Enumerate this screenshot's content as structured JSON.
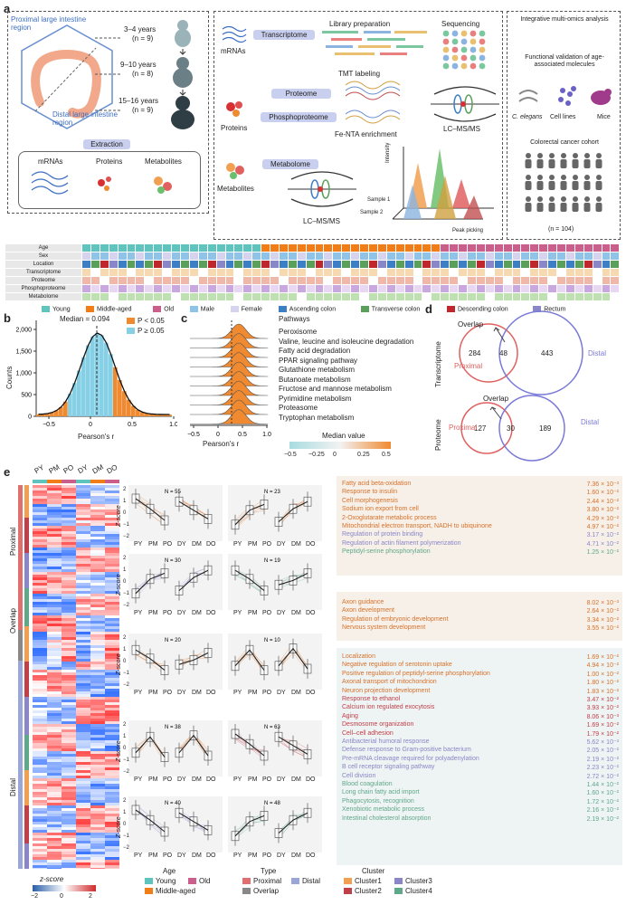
{
  "panel_labels": {
    "a": "a",
    "b": "b",
    "c": "c",
    "d": "d",
    "e": "e"
  },
  "panel_a": {
    "regions": {
      "proximal": "Proximal large intestine region",
      "distal": "Distal large intestine region"
    },
    "ages": [
      {
        "years": "3–4 years",
        "n": "(n = 9)"
      },
      {
        "years": "9–10 years",
        "n": "(n = 8)"
      },
      {
        "years": "15–16 years",
        "n": "(n = 9)"
      }
    ],
    "extraction": "Extraction",
    "molecules": [
      "mRNAs",
      "Proteins",
      "Metabolites"
    ],
    "omics": {
      "transcriptome": "Transcriptome",
      "library": "Library preparation",
      "sequencing": "Sequencing",
      "mrnas": "mRNAs",
      "proteome": "Proteome",
      "tmt": "TMT labeling",
      "phospho": "Phosphoproteome",
      "proteins": "Proteins",
      "fenta": "Fe-NTA enrichment",
      "lcms1": "LC–MS/MS",
      "metabolome": "Metabolome",
      "metabolites": "Metabolites",
      "lcms2": "LC–MS/MS",
      "intensity": "Intensity",
      "sample1": "Sample 1",
      "sample2": "Sample 2",
      "peak": "Peak picking"
    },
    "right": {
      "integrative": "Integrative multi-omics analysis",
      "validation": "Functional validation of age-associated molecules",
      "celegans": "C. elegans",
      "celllines": "Cell lines",
      "mice": "Mice",
      "cohort": "Colorectal cancer cohort",
      "n": "(n = 104)"
    },
    "track_labels": [
      "Age",
      "Sex",
      "Location",
      "Transcriptome",
      "Proteome",
      "Phosphoproteome",
      "Metabolome"
    ],
    "legend": [
      {
        "label": "Young",
        "color": "#5fc4bd"
      },
      {
        "label": "Middle-aged",
        "color": "#f07d18"
      },
      {
        "label": "Old",
        "color": "#c95f8a"
      },
      {
        "label": "Male",
        "color": "#8fc3e8"
      },
      {
        "label": "Female",
        "color": "#d6d3ee"
      },
      {
        "label": "Ascending colon",
        "color": "#3d7fc4"
      },
      {
        "label": "Transverse colon",
        "color": "#5aa05a"
      },
      {
        "label": "Descending colon",
        "color": "#c0272d"
      },
      {
        "label": "Rectum",
        "color": "#8a87c8"
      }
    ]
  },
  "panel_b": {
    "median": "Median = 0.094",
    "legend": [
      {
        "label": "P < 0.05",
        "color": "#f08a30"
      },
      {
        "label": "P ≥ 0.05",
        "color": "#86d0e6"
      }
    ],
    "ylabel": "Counts",
    "xlabel": "Pearson's r",
    "xticks": [
      "−0.5",
      "0",
      "0.5",
      "1.0"
    ],
    "yticks": [
      "0",
      "500",
      "1,000",
      "1,500",
      "2,000"
    ]
  },
  "panel_c": {
    "title": "Pathways",
    "pathways": [
      "Peroxisome",
      "Valine, leucine and isoleucine degradation",
      "Fatty acid degradation",
      "PPAR signaling pathway",
      "Glutathione metabolism",
      "Butanoate metabolism",
      "Fructose and mannose metabolism",
      "Pyrimidine metabolism",
      "Proteasome",
      "Tryptophan metabolism"
    ],
    "xlabel": "Pearson's r",
    "xticks": [
      "−0.5",
      "0",
      "0.5",
      "1.0"
    ],
    "colorbar_title": "Median value",
    "colorbar_ticks": [
      "−0.5",
      "−0.25",
      "0",
      "0.25",
      "0.5"
    ]
  },
  "panel_d": {
    "transcriptome": {
      "side": "Transcriptome",
      "overlap": "Overlap",
      "left": "284",
      "mid": "48",
      "right": "443",
      "proximal": "Proximal",
      "distal": "Distal"
    },
    "proteome": {
      "side": "Proteome",
      "overlap": "Overlap",
      "left": "127",
      "mid": "30",
      "right": "189",
      "proximal": "Proximal",
      "distal": "Distal"
    }
  },
  "panel_e": {
    "heat_cols": [
      "PY",
      "PM",
      "PO",
      "DY",
      "DM",
      "DO"
    ],
    "row_groups": [
      "Proximal",
      "Overlap",
      "Distal"
    ],
    "trend_ns": [
      "N = 55",
      "N = 23",
      "N = 30",
      "N = 19",
      "N = 20",
      "N = 10",
      "N = 38",
      "N = 63",
      "N = 40",
      "N = 48"
    ],
    "xticks": [
      "PY",
      "PM",
      "PO",
      "DY",
      "DM",
      "DO"
    ],
    "ylabel": "Z-score",
    "yticks": [
      "2",
      "1",
      "0",
      "−1",
      "−2"
    ],
    "terms_proximal": [
      {
        "t": "Fatty acid beta-oxidation",
        "v": "7.36 × 10⁻³",
        "c": "#d8712a"
      },
      {
        "t": "Response to insulin",
        "v": "1.60 × 10⁻²",
        "c": "#d8712a"
      },
      {
        "t": "Cell morphogenesis",
        "v": "2.44 × 10⁻²",
        "c": "#d8712a"
      },
      {
        "t": "Sodium ion export from cell",
        "v": "3.80 × 10⁻²",
        "c": "#d8712a"
      },
      {
        "t": "2-Oxoglutarate metabolic process",
        "v": "4.29 × 10⁻²",
        "c": "#d8712a"
      },
      {
        "t": "Mitochondrial electron transport, NADH to ubiquinone",
        "v": "4.97 × 10⁻²",
        "c": "#d8712a"
      },
      {
        "t": "Regulation of protein binding",
        "v": "3.17 × 10⁻²",
        "c": "#8a86c8"
      },
      {
        "t": "Regulation of actin filament polymerization",
        "v": "4.71 × 10⁻²",
        "c": "#8a86c8"
      },
      {
        "t": "Peptidyl-serine phosphorylation",
        "v": "1.25 × 10⁻²",
        "c": "#5fa88a"
      }
    ],
    "terms_overlap": [
      {
        "t": "Axon guidance",
        "v": "8.02 × 10⁻³",
        "c": "#d8712a"
      },
      {
        "t": "Axon development",
        "v": "2.64 × 10⁻²",
        "c": "#d8712a"
      },
      {
        "t": "Regulation of embryonic development",
        "v": "3.34 × 10⁻²",
        "c": "#d8712a"
      },
      {
        "t": "Nervous system development",
        "v": "3.55 × 10⁻²",
        "c": "#d8712a"
      }
    ],
    "terms_distal": [
      {
        "t": "Localization",
        "v": "1.69 × 10⁻²",
        "c": "#d8712a"
      },
      {
        "t": "Negative regulation of serotonin uptake",
        "v": "4.94 × 10⁻²",
        "c": "#d8712a"
      },
      {
        "t": "Positive regulation of peptidyl-serine phosphorylation",
        "v": "1.00 × 10⁻²",
        "c": "#d8712a"
      },
      {
        "t": "Axonal transport of mitochondrion",
        "v": "1.80 × 10⁻²",
        "c": "#d8712a"
      },
      {
        "t": "Neuron projection development",
        "v": "1.83 × 10⁻²",
        "c": "#d8712a"
      },
      {
        "t": "Response to ethanol",
        "v": "3.47 × 10⁻²",
        "c": "#c0404a"
      },
      {
        "t": "Calcium ion regulated exocytosis",
        "v": "3.93 × 10⁻²",
        "c": "#c0404a"
      },
      {
        "t": "Aging",
        "v": "8.06 × 10⁻³",
        "c": "#c0404a"
      },
      {
        "t": "Desmosome organization",
        "v": "1.69 × 10⁻²",
        "c": "#c0404a"
      },
      {
        "t": "Cell–cell adhesion",
        "v": "1.79 × 10⁻²",
        "c": "#c0404a"
      },
      {
        "t": "Antibacterial humoral response",
        "v": "5.62 × 10⁻³",
        "c": "#8a86c8"
      },
      {
        "t": "Defense response to Gram-positive bacterium",
        "v": "2.05 × 10⁻²",
        "c": "#8a86c8"
      },
      {
        "t": "Pre-mRNA cleavage required for polyadenylation",
        "v": "2.19 × 10⁻²",
        "c": "#8a86c8"
      },
      {
        "t": "B cell receptor signaling pathway",
        "v": "2.23 × 10⁻²",
        "c": "#8a86c8"
      },
      {
        "t": "Cell division",
        "v": "2.72 × 10⁻²",
        "c": "#8a86c8"
      },
      {
        "t": "Blood coagulation",
        "v": "1.44 × 10⁻²",
        "c": "#5fa88a"
      },
      {
        "t": "Long chain fatty acid import",
        "v": "1.60 × 10⁻²",
        "c": "#5fa88a"
      },
      {
        "t": "Phagocytosis, recognition",
        "v": "1.72 × 10⁻²",
        "c": "#5fa88a"
      },
      {
        "t": "Xenobiotic metabolic process",
        "v": "2.16 × 10⁻²",
        "c": "#5fa88a"
      },
      {
        "t": "Intestinal cholesterol absorption",
        "v": "2.19 × 10⁻²",
        "c": "#5fa88a"
      }
    ],
    "zscore_title": "z-score",
    "zscore_ticks": [
      "−2",
      "0",
      "2"
    ],
    "legend_age": {
      "title": "Age",
      "items": [
        {
          "label": "Young",
          "color": "#5fc4bd"
        },
        {
          "label": "Old",
          "color": "#c95f8a"
        },
        {
          "label": "Middle-aged",
          "color": "#f07d18"
        }
      ]
    },
    "legend_type": {
      "title": "Type",
      "items": [
        {
          "label": "Proximal",
          "color": "#e07070"
        },
        {
          "label": "Distal",
          "color": "#9aa6d8"
        },
        {
          "label": "Overlap",
          "color": "#888888"
        }
      ]
    },
    "legend_cluster": {
      "title": "Cluster",
      "items": [
        {
          "label": "Cluster1",
          "color": "#f0a050"
        },
        {
          "label": "Cluster3",
          "color": "#8a86c8"
        },
        {
          "label": "Cluster2",
          "color": "#c0404a"
        },
        {
          "label": "Cluster4",
          "color": "#5fa88a"
        }
      ]
    }
  }
}
